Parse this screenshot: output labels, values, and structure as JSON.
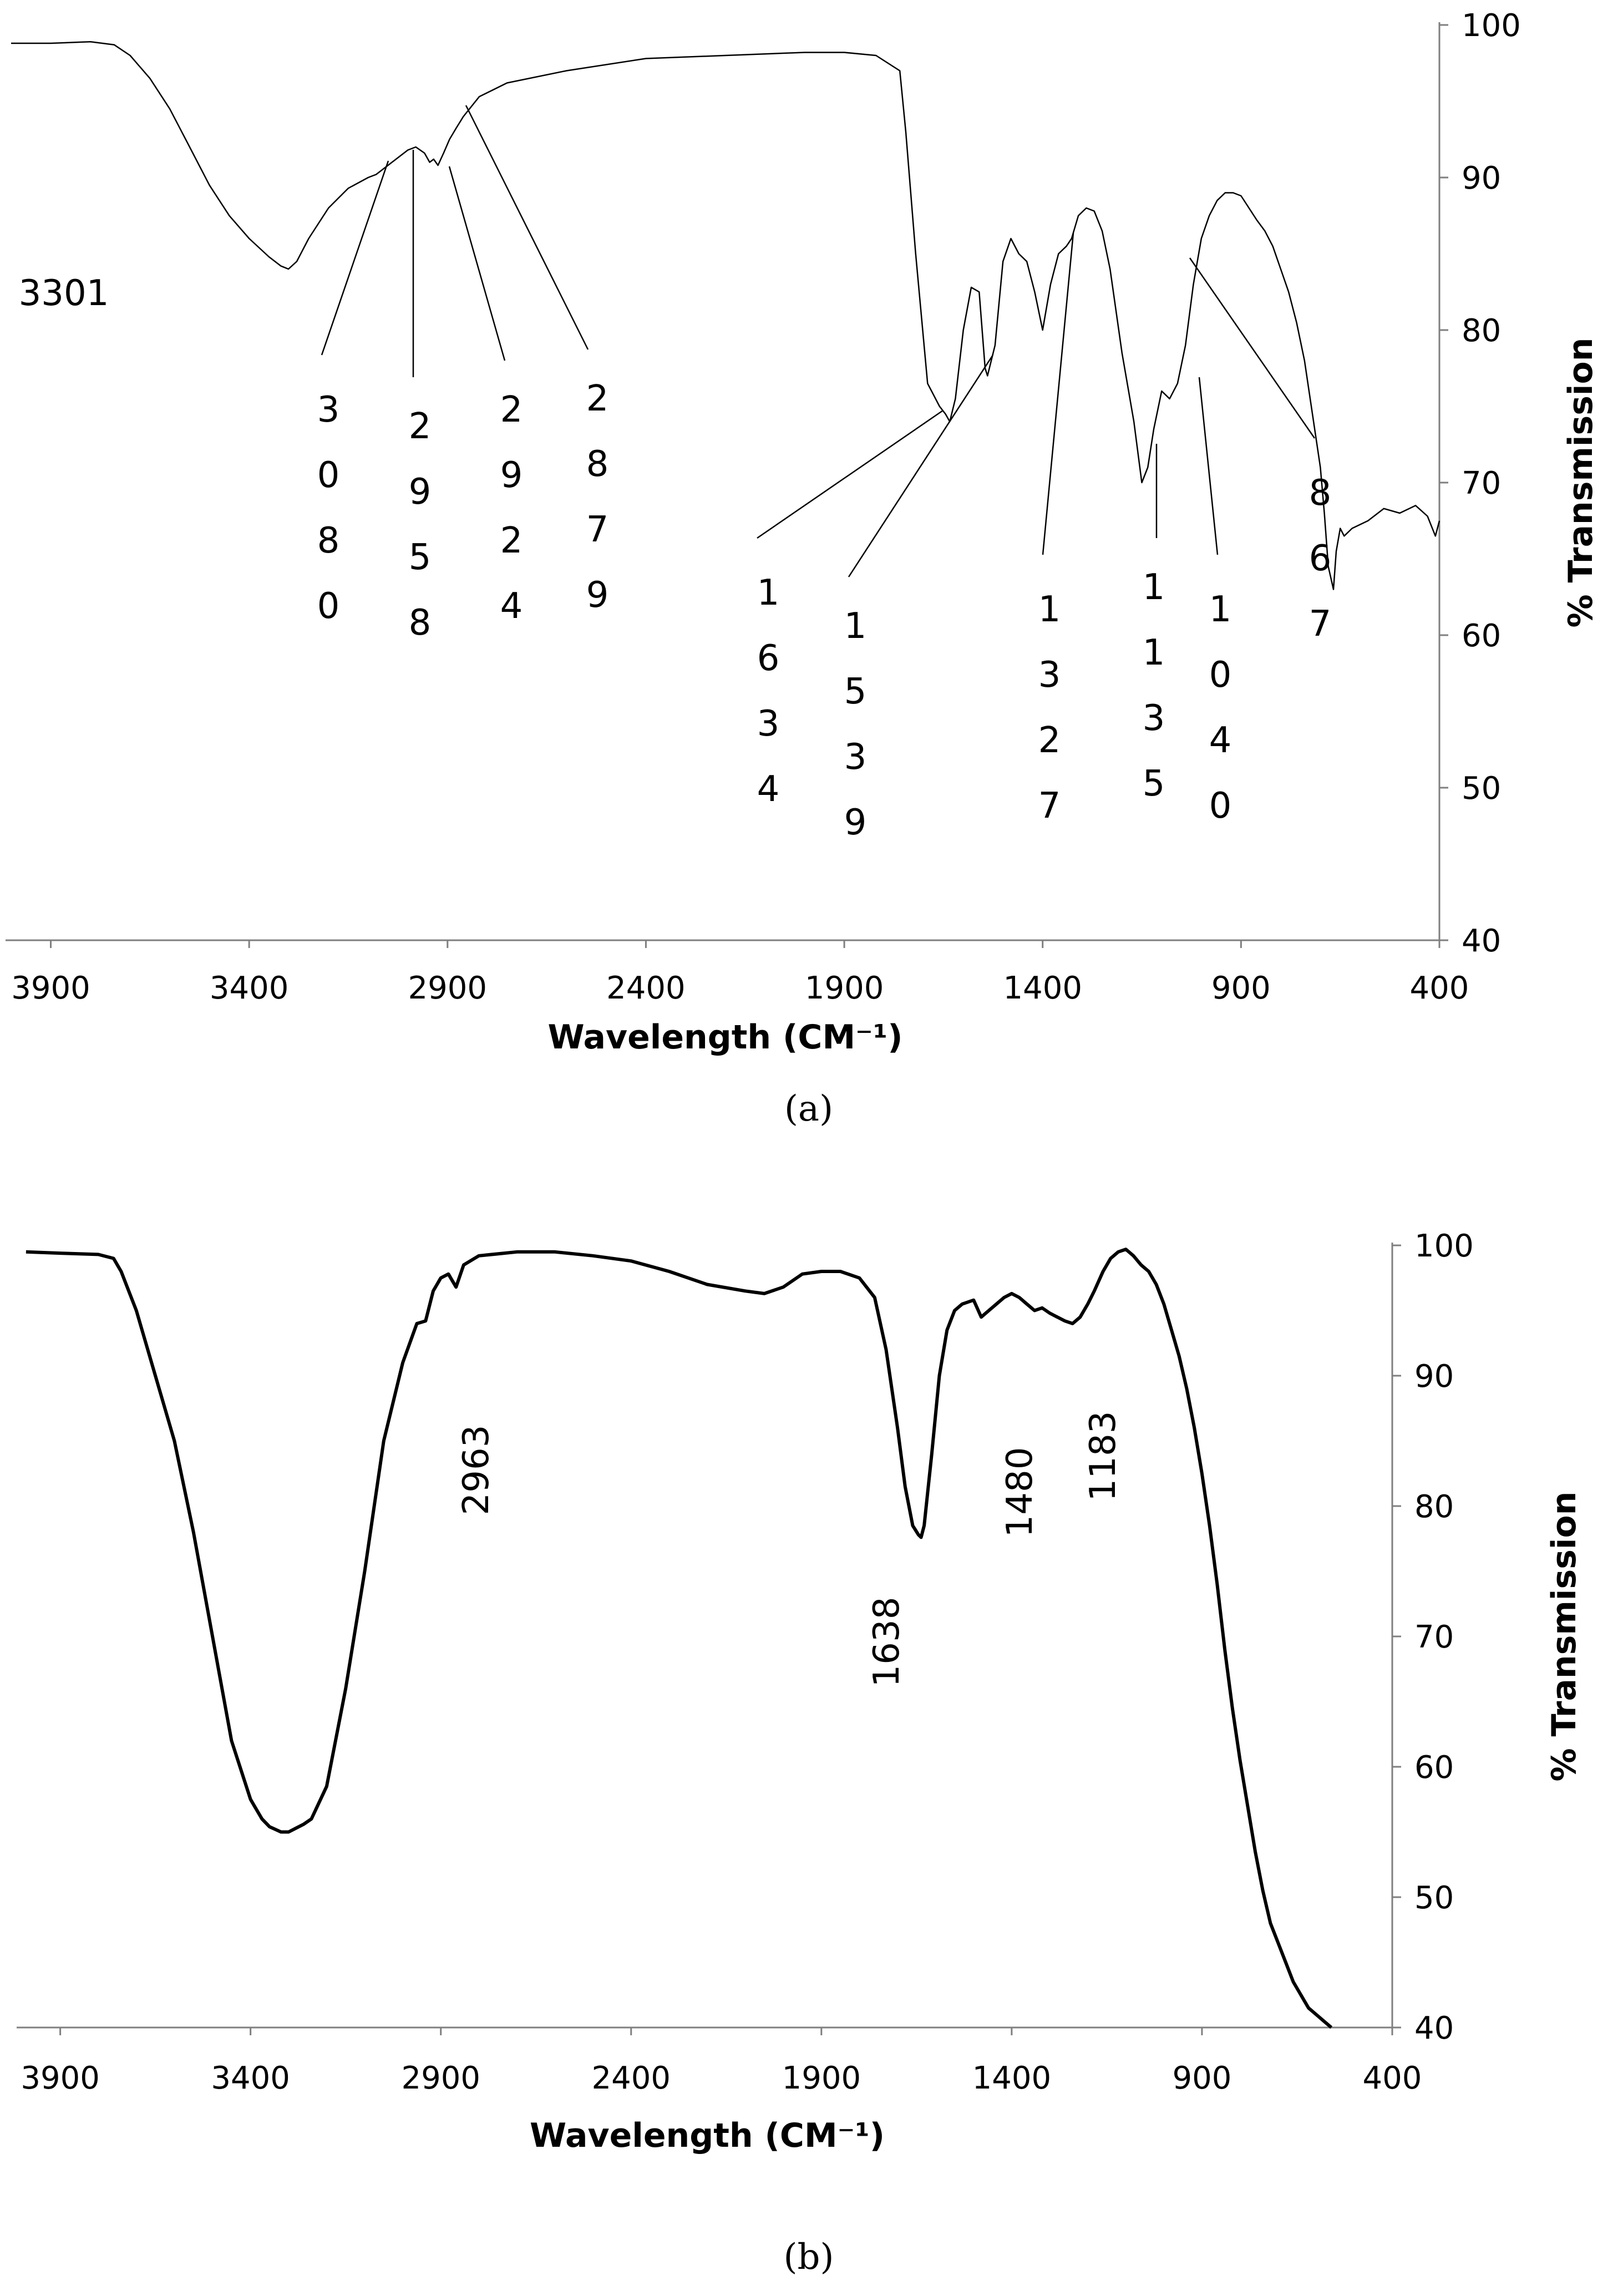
{
  "chart_data": [
    {
      "type": "line",
      "panel_label": "(a)",
      "xlabel": "Wavelength (CM⁻¹)",
      "ylabel": "% Transmission",
      "xlim": [
        4000,
        400
      ],
      "ylim": [
        40,
        100
      ],
      "x_ticks": [
        3900,
        3400,
        2900,
        2400,
        1900,
        1400,
        900,
        400
      ],
      "y_ticks": [
        40,
        50,
        60,
        70,
        80,
        90,
        100
      ],
      "y_axis_side": "right",
      "grid": false,
      "legend": "none",
      "series": [
        {
          "x": [
            4000,
            3900,
            3800,
            3740,
            3700,
            3650,
            3600,
            3550,
            3500,
            3450,
            3400,
            3350,
            3320,
            3301,
            3280,
            3250,
            3200,
            3150,
            3100,
            3080,
            3040,
            3000,
            2980,
            2958,
            2945,
            2935,
            2924,
            2910,
            2895,
            2879,
            2860,
            2820,
            2750,
            2600,
            2400,
            2200,
            2000,
            1900,
            1820,
            1760,
            1745,
            1720,
            1690,
            1660,
            1645,
            1634,
            1620,
            1600,
            1580,
            1560,
            1545,
            1539,
            1520,
            1500,
            1480,
            1460,
            1440,
            1420,
            1400,
            1380,
            1360,
            1340,
            1327,
            1310,
            1290,
            1270,
            1250,
            1230,
            1200,
            1170,
            1150,
            1135,
            1120,
            1100,
            1080,
            1060,
            1040,
            1020,
            1000,
            980,
            960,
            940,
            920,
            900,
            880,
            860,
            840,
            820,
            800,
            780,
            760,
            740,
            720,
            700,
            690,
            680,
            667,
            660,
            650,
            640,
            620,
            580,
            540,
            500,
            460,
            430,
            410,
            400
          ],
          "y": [
            98.8,
            98.8,
            98.9,
            98.7,
            98.0,
            96.5,
            94.5,
            92.0,
            89.5,
            87.5,
            86.0,
            84.8,
            84.2,
            84.0,
            84.5,
            86.0,
            88.0,
            89.3,
            90.0,
            90.2,
            91.0,
            91.8,
            92.0,
            91.6,
            91.0,
            91.2,
            90.8,
            91.6,
            92.5,
            93.2,
            94.0,
            95.3,
            96.2,
            97.0,
            97.8,
            98.0,
            98.2,
            98.2,
            98.0,
            97.0,
            93.0,
            85.0,
            76.5,
            75.0,
            74.5,
            74.0,
            75.5,
            80.0,
            82.8,
            82.5,
            77.5,
            77.0,
            79.0,
            84.5,
            86.0,
            85.0,
            84.5,
            82.5,
            80.0,
            83.0,
            85.0,
            85.5,
            86.0,
            87.5,
            88.0,
            87.8,
            86.5,
            84.0,
            78.5,
            74.0,
            70.0,
            71.0,
            73.5,
            76.0,
            75.5,
            76.5,
            79.0,
            83.0,
            86.0,
            87.5,
            88.5,
            89.0,
            89.0,
            88.8,
            88.0,
            87.2,
            86.5,
            85.5,
            84.0,
            82.5,
            80.5,
            78.0,
            74.5,
            71.0,
            68.0,
            64.5,
            63.0,
            65.5,
            67.0,
            66.5,
            67.0,
            67.5,
            68.3,
            68.0,
            68.5,
            67.8,
            66.5,
            67.5
          ]
        }
      ],
      "peak_labels": [
        {
          "x": 3301,
          "text": "3301",
          "style": "horizontal"
        },
        {
          "x": 3080,
          "text": "3080",
          "style": "stacked-leader"
        },
        {
          "x": 2958,
          "text": "2958",
          "style": "stacked-leader"
        },
        {
          "x": 2924,
          "text": "2924",
          "style": "stacked-leader"
        },
        {
          "x": 2879,
          "text": "2879",
          "style": "stacked-leader"
        },
        {
          "x": 1634,
          "text": "1634",
          "style": "stacked-leader"
        },
        {
          "x": 1539,
          "text": "1539",
          "style": "stacked-leader"
        },
        {
          "x": 1327,
          "text": "1327",
          "style": "stacked-leader"
        },
        {
          "x": 1135,
          "text": "1135",
          "style": "stacked-leader"
        },
        {
          "x": 1040,
          "text": "1040",
          "style": "stacked-leader"
        },
        {
          "x": 867,
          "text": "867",
          "style": "stacked-leader"
        }
      ]
    },
    {
      "type": "line",
      "panel_label": "(b)",
      "xlabel": "Wavelength (CM⁻¹)",
      "ylabel": "% Transmission",
      "xlim": [
        4000,
        400
      ],
      "ylim": [
        40,
        100
      ],
      "x_ticks": [
        3900,
        3400,
        2900,
        2400,
        1900,
        1400,
        900,
        400
      ],
      "y_ticks": [
        40,
        50,
        60,
        70,
        80,
        90,
        100
      ],
      "y_axis_side": "right",
      "grid": false,
      "legend": "none",
      "series": [
        {
          "x": [
            3990,
            3900,
            3800,
            3760,
            3740,
            3720,
            3700,
            3650,
            3600,
            3550,
            3500,
            3450,
            3400,
            3370,
            3350,
            3320,
            3300,
            3280,
            3260,
            3240,
            3200,
            3150,
            3100,
            3050,
            3000,
            2963,
            2940,
            2920,
            2900,
            2880,
            2860,
            2840,
            2800,
            2700,
            2600,
            2500,
            2400,
            2300,
            2200,
            2100,
            2050,
            2000,
            1950,
            1900,
            1850,
            1800,
            1760,
            1730,
            1700,
            1680,
            1660,
            1645,
            1638,
            1630,
            1610,
            1590,
            1570,
            1550,
            1530,
            1500,
            1480,
            1460,
            1440,
            1420,
            1400,
            1380,
            1360,
            1340,
            1320,
            1300,
            1280,
            1260,
            1240,
            1220,
            1200,
            1183,
            1160,
            1140,
            1120,
            1100,
            1080,
            1060,
            1040,
            1020,
            1000,
            980,
            960,
            940,
            920,
            900,
            880,
            860,
            840,
            820,
            800,
            780,
            760,
            740,
            720,
            700,
            680,
            660,
            640,
            620,
            600,
            580,
            560
          ],
          "y": [
            99.5,
            99.4,
            99.3,
            99.0,
            98.0,
            96.5,
            95.0,
            90.0,
            85.0,
            78.0,
            70.0,
            62.0,
            57.5,
            56.0,
            55.4,
            55.0,
            55.0,
            55.3,
            55.6,
            56.0,
            58.5,
            66.0,
            75.0,
            85.0,
            91.0,
            94.0,
            94.2,
            96.5,
            97.5,
            97.8,
            96.8,
            98.5,
            99.2,
            99.5,
            99.5,
            99.2,
            98.8,
            98.0,
            97.0,
            96.5,
            96.3,
            96.8,
            97.8,
            98.0,
            98.0,
            97.5,
            96.0,
            92.0,
            86.0,
            81.5,
            78.5,
            77.8,
            77.6,
            78.5,
            84.0,
            90.0,
            93.5,
            95.0,
            95.5,
            95.8,
            94.5,
            95.0,
            95.5,
            96.0,
            96.3,
            96.0,
            95.5,
            95.0,
            95.2,
            94.8,
            94.5,
            94.2,
            94.0,
            94.5,
            95.5,
            96.5,
            98.0,
            99.0,
            99.5,
            99.7,
            99.2,
            98.5,
            98.0,
            97.0,
            95.5,
            93.5,
            91.5,
            89.0,
            86.0,
            82.5,
            78.5,
            74.0,
            69.0,
            64.5,
            60.5,
            57.0,
            53.5,
            50.5,
            48.0,
            46.5,
            45.0,
            43.5,
            42.5,
            41.5,
            41.0,
            40.5,
            40.0
          ]
        }
      ],
      "peak_labels": [
        {
          "x": 2963,
          "text": "2963",
          "style": "rotated"
        },
        {
          "x": 1638,
          "text": "1638",
          "style": "rotated"
        },
        {
          "x": 1480,
          "text": "1480",
          "style": "rotated"
        },
        {
          "x": 1183,
          "text": "1183",
          "style": "rotated"
        }
      ]
    }
  ]
}
